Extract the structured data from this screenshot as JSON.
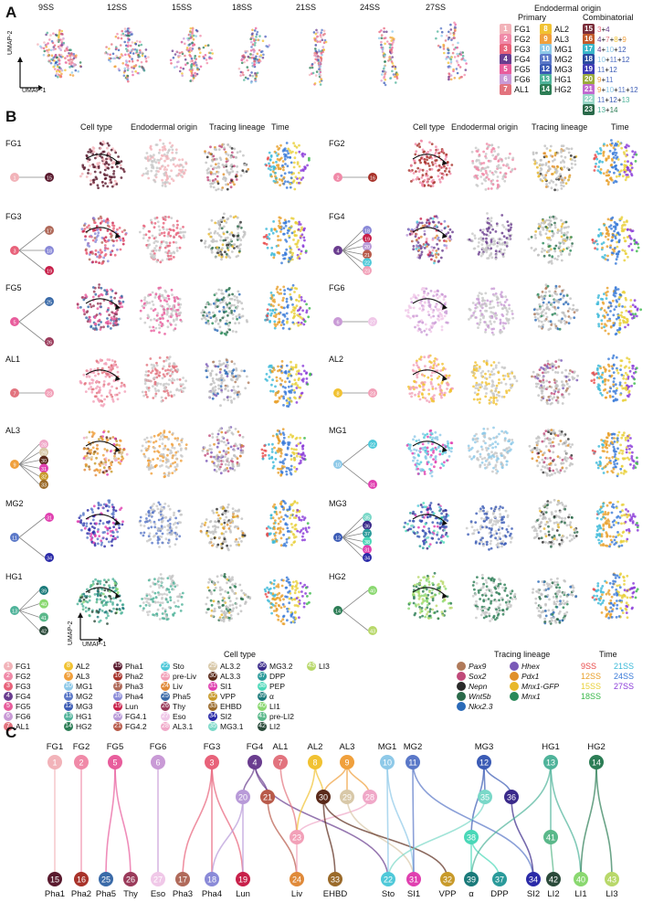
{
  "panel_labels": {
    "a": "A",
    "b": "B",
    "c": "C"
  },
  "panelA": {
    "timepoints": [
      "9SS",
      "12SS",
      "15SS",
      "18SS",
      "21SS",
      "24SS",
      "27SS"
    ],
    "umap1": "UMAP-1",
    "umap2": "UMAP-2",
    "legend_title": "Endodermal origin",
    "primary_title": "Primary",
    "combinatorial_title": "Combinatorial",
    "primary": [
      {
        "n": "1",
        "label": "FG1",
        "color": "#f2b3b9"
      },
      {
        "n": "2",
        "label": "FG2",
        "color": "#f08aa8"
      },
      {
        "n": "3",
        "label": "FG3",
        "color": "#e8627a"
      },
      {
        "n": "4",
        "label": "FG4",
        "color": "#6a3d8f"
      },
      {
        "n": "5",
        "label": "FG5",
        "color": "#e85d9c"
      },
      {
        "n": "6",
        "label": "FG6",
        "color": "#c99ad6"
      },
      {
        "n": "7",
        "label": "AL1",
        "color": "#e2737e"
      },
      {
        "n": "8",
        "label": "AL2",
        "color": "#f1c232"
      },
      {
        "n": "9",
        "label": "AL3",
        "color": "#f0a03c"
      },
      {
        "n": "10",
        "label": "MG1",
        "color": "#8ec9e8"
      },
      {
        "n": "11",
        "label": "MG2",
        "color": "#5a78c8"
      },
      {
        "n": "12",
        "label": "MG3",
        "color": "#3b5bb5"
      },
      {
        "n": "13",
        "label": "HG1",
        "color": "#4fb39a"
      },
      {
        "n": "14",
        "label": "HG2",
        "color": "#2c7d55"
      }
    ],
    "combinatorial": [
      {
        "n": "15",
        "parts": [
          "3",
          "4"
        ],
        "colors": [
          "#e8627a",
          "#6a3d8f"
        ],
        "color": "#7a2d3a"
      },
      {
        "n": "16",
        "parts": [
          "4",
          "7",
          "8",
          "9"
        ],
        "colors": [
          "#6a3d8f",
          "#e2737e",
          "#f1c232",
          "#f0a03c"
        ],
        "color": "#c35a2a"
      },
      {
        "n": "17",
        "parts": [
          "4",
          "10",
          "12"
        ],
        "colors": [
          "#6a3d8f",
          "#8ec9e8",
          "#3b5bb5"
        ],
        "color": "#39b6c9"
      },
      {
        "n": "18",
        "parts": [
          "10",
          "11",
          "12"
        ],
        "colors": [
          "#8ec9e8",
          "#5a78c8",
          "#3b5bb5"
        ],
        "color": "#2a4aa0"
      },
      {
        "n": "19",
        "parts": [
          "11",
          "12"
        ],
        "colors": [
          "#5a78c8",
          "#3b5bb5"
        ],
        "color": "#3e3bb5"
      },
      {
        "n": "20",
        "parts": [
          "9",
          "11"
        ],
        "colors": [
          "#f0a03c",
          "#5a78c8"
        ],
        "color": "#9aaa3c"
      },
      {
        "n": "21",
        "parts": [
          "9",
          "10",
          "11",
          "12"
        ],
        "colors": [
          "#f0a03c",
          "#8ec9e8",
          "#5a78c8",
          "#3b5bb5"
        ],
        "color": "#c06ad0"
      },
      {
        "n": "22",
        "parts": [
          "11",
          "12",
          "13"
        ],
        "colors": [
          "#5a78c8",
          "#3b5bb5",
          "#4fb39a"
        ],
        "color": "#9ad8c8"
      },
      {
        "n": "23",
        "parts": [
          "13",
          "14"
        ],
        "colors": [
          "#4fb39a",
          "#2c7d55"
        ],
        "color": "#2a6a4a"
      }
    ]
  },
  "panelB": {
    "column_headers": [
      "Cell type",
      "Endodermal origin",
      "Tracing  lineage",
      "Time"
    ],
    "umap1": "UMAP-1",
    "umap2": "UMAP-2",
    "rows": [
      {
        "left": {
          "name": "FG1",
          "graph": "1→15"
        },
        "right": {
          "name": "FG2",
          "graph": "2→16"
        }
      },
      {
        "left": {
          "name": "FG3",
          "graph": "3→17,18,19"
        },
        "right": {
          "name": "FG4",
          "graph": "4→18,19,20,21,22,23,24"
        }
      },
      {
        "left": {
          "name": "FG5",
          "graph": "5→25,26"
        },
        "right": {
          "name": "FG6",
          "graph": "6→27"
        }
      },
      {
        "left": {
          "name": "AL1",
          "graph": "7→23→24"
        },
        "right": {
          "name": "AL2",
          "graph": "8→23→24"
        }
      },
      {
        "left": {
          "name": "AL3",
          "graph": "9→28,29,30,31,32,33,24"
        },
        "right": {
          "name": "MG1",
          "graph": "10→22,31"
        }
      },
      {
        "left": {
          "name": "MG2",
          "graph": "11→31,34"
        },
        "right": {
          "name": "MG3",
          "graph": "12→35,36,37,38,31,34,22"
        }
      },
      {
        "left": {
          "name": "HG1",
          "graph": "13→39,40,41,42"
        },
        "right": {
          "name": "HG2",
          "graph": "14→40,43"
        }
      }
    ],
    "celltype_title": "Cell type",
    "celltypes": [
      {
        "n": "1",
        "label": "FG1",
        "color": "#f2b3b9"
      },
      {
        "n": "2",
        "label": "FG2",
        "color": "#f08aa8"
      },
      {
        "n": "3",
        "label": "FG3",
        "color": "#e8627a"
      },
      {
        "n": "4",
        "label": "FG4",
        "color": "#6a3d8f"
      },
      {
        "n": "5",
        "label": "FG5",
        "color": "#e85d9c"
      },
      {
        "n": "6",
        "label": "FG6",
        "color": "#c99ad6"
      },
      {
        "n": "7",
        "label": "AL1",
        "color": "#e2737e"
      },
      {
        "n": "8",
        "label": "AL2",
        "color": "#f1c232"
      },
      {
        "n": "9",
        "label": "AL3",
        "color": "#f0a03c"
      },
      {
        "n": "10",
        "label": "MG1",
        "color": "#8ec9e8"
      },
      {
        "n": "11",
        "label": "MG2",
        "color": "#5a78c8"
      },
      {
        "n": "12",
        "label": "MG3",
        "color": "#3b5bb5"
      },
      {
        "n": "13",
        "label": "HG1",
        "color": "#4fb39a"
      },
      {
        "n": "14",
        "label": "HG2",
        "color": "#2c7d55"
      },
      {
        "n": "15",
        "label": "Pha1",
        "color": "#5a1a2e"
      },
      {
        "n": "16",
        "label": "Pha2",
        "color": "#a8322a"
      },
      {
        "n": "17",
        "label": "Pha3",
        "color": "#b06a5a"
      },
      {
        "n": "18",
        "label": "Pha4",
        "color": "#8a8ad8"
      },
      {
        "n": "19",
        "label": "Lun",
        "color": "#c8204a"
      },
      {
        "n": "20",
        "label": "FG4.1",
        "color": "#b89ad8"
      },
      {
        "n": "21",
        "label": "FG4.2",
        "color": "#b85a4a"
      },
      {
        "n": "22",
        "label": "Sto",
        "color": "#4fc9d9"
      },
      {
        "n": "23",
        "label": "pre-Liv",
        "color": "#f2a0b8"
      },
      {
        "n": "24",
        "label": "Liv",
        "color": "#e08a3a"
      },
      {
        "n": "25",
        "label": "Pha5",
        "color": "#3a6aa8"
      },
      {
        "n": "26",
        "label": "Thy",
        "color": "#9a3a5a"
      },
      {
        "n": "27",
        "label": "Eso",
        "color": "#f0c8e8"
      },
      {
        "n": "28",
        "label": "AL3.1",
        "color": "#f0a8c8"
      },
      {
        "n": "29",
        "label": "AL3.2",
        "color": "#d8c8a8"
      },
      {
        "n": "30",
        "label": "AL3.3",
        "color": "#5a2a1a"
      },
      {
        "n": "31",
        "label": "SI1",
        "color": "#e040b0"
      },
      {
        "n": "32",
        "label": "VPP",
        "color": "#c89a2a"
      },
      {
        "n": "33",
        "label": "EHBD",
        "color": "#9a6a2a"
      },
      {
        "n": "34",
        "label": "SI2",
        "color": "#2a2aa8"
      },
      {
        "n": "35",
        "label": "MG3.1",
        "color": "#7ad8c8"
      },
      {
        "n": "36",
        "label": "MG3.2",
        "color": "#3a2a8a"
      },
      {
        "n": "37",
        "label": "DPP",
        "color": "#2a9a9a"
      },
      {
        "n": "38",
        "label": "PEP",
        "color": "#4ad8b8"
      },
      {
        "n": "39",
        "label": "α",
        "color": "#1a7a7a"
      },
      {
        "n": "40",
        "label": "LI1",
        "color": "#8ad870"
      },
      {
        "n": "41",
        "label": "pre-LI2",
        "color": "#5ab88a"
      },
      {
        "n": "42",
        "label": "LI2",
        "color": "#2a4a3a"
      },
      {
        "n": "43",
        "label": "LI3",
        "color": "#b8d86a"
      }
    ],
    "tracing_title": "Tracing lineage",
    "tracing": [
      {
        "label": "Pax9",
        "color": "#b07a5a"
      },
      {
        "label": "Hhex",
        "color": "#7a5ab8"
      },
      {
        "label": "Sox2",
        "color": "#c04a7a"
      },
      {
        "label": "Pdx1",
        "color": "#e0902a"
      },
      {
        "label": "Nepn",
        "color": "#2a2a2a"
      },
      {
        "label": "Mnx1-GFP",
        "color": "#e8b82a"
      },
      {
        "label": "Wnt5b",
        "color": "#2a6a4a"
      },
      {
        "label": "Mnx1",
        "color": "#2a8a5a"
      },
      {
        "label": "Nkx2.3",
        "color": "#2a6ab8"
      }
    ],
    "time_title": "Time",
    "time": [
      {
        "label": "9SS",
        "color": "#e84a4a"
      },
      {
        "label": "21SS",
        "color": "#3ab8d8"
      },
      {
        "label": "12SS",
        "color": "#e8a02a"
      },
      {
        "label": "24SS",
        "color": "#3a7ad8"
      },
      {
        "label": "15SS",
        "color": "#e8d03a"
      },
      {
        "label": "27SS",
        "color": "#8a3ad8"
      },
      {
        "label": "18SS",
        "color": "#3ab84a"
      }
    ]
  },
  "panelC": {
    "top": [
      {
        "n": "1",
        "label": "FG1",
        "color": "#f2b3b9"
      },
      {
        "n": "2",
        "label": "FG2",
        "color": "#f08aa8"
      },
      {
        "n": "5",
        "label": "FG5",
        "color": "#e85d9c"
      },
      {
        "n": "6",
        "label": "FG6",
        "color": "#c99ad6"
      },
      {
        "n": "3",
        "label": "FG3",
        "color": "#e8627a"
      },
      {
        "n": "4",
        "label": "FG4",
        "color": "#6a3d8f"
      },
      {
        "n": "7",
        "label": "AL1",
        "color": "#e2737e"
      },
      {
        "n": "8",
        "label": "AL2",
        "color": "#f1c232"
      },
      {
        "n": "9",
        "label": "AL3",
        "color": "#f0a03c"
      },
      {
        "n": "10",
        "label": "MG1",
        "color": "#8ec9e8"
      },
      {
        "n": "11",
        "label": "MG2",
        "color": "#5a78c8"
      },
      {
        "n": "12",
        "label": "MG3",
        "color": "#3b5bb5"
      },
      {
        "n": "13",
        "label": "HG1",
        "color": "#4fb39a"
      },
      {
        "n": "14",
        "label": "HG2",
        "color": "#2c7d55"
      }
    ],
    "middle": [
      {
        "n": "20",
        "color": "#b89ad8"
      },
      {
        "n": "21",
        "color": "#b85a4a"
      },
      {
        "n": "30",
        "color": "#5a2a1a"
      },
      {
        "n": "29",
        "color": "#d8c8a8"
      },
      {
        "n": "28",
        "color": "#f0a8c8"
      },
      {
        "n": "23",
        "color": "#f2a0b8"
      },
      {
        "n": "35",
        "color": "#7ad8c8"
      },
      {
        "n": "36",
        "color": "#3a2a8a"
      },
      {
        "n": "38",
        "color": "#4ad8b8"
      },
      {
        "n": "41",
        "color": "#5ab88a"
      }
    ],
    "bottom": [
      {
        "n": "15",
        "label": "Pha1",
        "color": "#5a1a2e"
      },
      {
        "n": "16",
        "label": "Pha2",
        "color": "#a8322a"
      },
      {
        "n": "25",
        "label": "Pha5",
        "color": "#3a6aa8"
      },
      {
        "n": "26",
        "label": "Thy",
        "color": "#9a3a5a"
      },
      {
        "n": "27",
        "label": "Eso",
        "color": "#f0c8e8"
      },
      {
        "n": "17",
        "label": "Pha3",
        "color": "#b06a5a"
      },
      {
        "n": "18",
        "label": "Pha4",
        "color": "#8a8ad8"
      },
      {
        "n": "19",
        "label": "Lun",
        "color": "#c8204a"
      },
      {
        "n": "24",
        "label": "Liv",
        "color": "#e08a3a"
      },
      {
        "n": "33",
        "label": "EHBD",
        "color": "#9a6a2a"
      },
      {
        "n": "22",
        "label": "Sto",
        "color": "#4fc9d9"
      },
      {
        "n": "31",
        "label": "SI1",
        "color": "#e040b0"
      },
      {
        "n": "32",
        "label": "VPP",
        "color": "#c89a2a"
      },
      {
        "n": "39",
        "label": "α",
        "color": "#1a7a7a"
      },
      {
        "n": "37",
        "label": "DPP",
        "color": "#2a9a9a"
      },
      {
        "n": "34",
        "label": "SI2",
        "color": "#2a2aa8"
      },
      {
        "n": "42",
        "label": "LI2",
        "color": "#2a4a3a"
      },
      {
        "n": "40",
        "label": "LI1",
        "color": "#8ad870"
      },
      {
        "n": "43",
        "label": "LI3",
        "color": "#b8d86a"
      }
    ]
  }
}
